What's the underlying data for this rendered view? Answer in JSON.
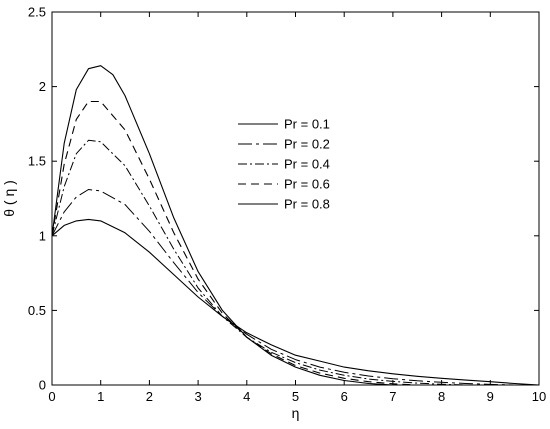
{
  "chart_data": {
    "type": "line",
    "title": "",
    "xlabel": "η",
    "ylabel": "θ ( η )",
    "xlim": [
      0,
      10
    ],
    "ylim": [
      0,
      2.5
    ],
    "xticks": [
      0,
      1,
      2,
      3,
      4,
      5,
      6,
      7,
      8,
      9,
      10
    ],
    "yticks": [
      0,
      0.5,
      1,
      1.5,
      2,
      2.5
    ],
    "xtick_labels": [
      "0",
      "1",
      "2",
      "3",
      "4",
      "5",
      "6",
      "7",
      "8",
      "9",
      "10"
    ],
    "ytick_labels": [
      "0",
      "0.5",
      "1",
      "1.5",
      "2",
      "2.5"
    ],
    "grid": false,
    "legend_position": "center",
    "series": [
      {
        "name": "Pr = 0.1",
        "color": "#000000",
        "dash": "solid",
        "x": [
          0,
          0.25,
          0.5,
          0.75,
          1,
          1.5,
          2,
          2.5,
          3,
          3.5,
          4,
          4.5,
          5,
          5.5,
          6,
          6.5,
          7,
          7.5,
          8,
          8.5,
          9,
          9.5,
          10
        ],
        "y": [
          1.0,
          1.07,
          1.1,
          1.11,
          1.1,
          1.02,
          0.89,
          0.74,
          0.59,
          0.46,
          0.35,
          0.27,
          0.2,
          0.16,
          0.12,
          0.095,
          0.075,
          0.058,
          0.045,
          0.033,
          0.022,
          0.01,
          0.0
        ]
      },
      {
        "name": "Pr = 0.2",
        "color": "#000000",
        "dash": "longdash",
        "x": [
          0,
          0.25,
          0.5,
          0.75,
          1,
          1.5,
          2,
          2.5,
          3,
          3.5,
          4,
          4.5,
          5,
          5.5,
          6,
          6.5,
          7,
          7.5,
          8,
          8.5,
          9,
          9.5
        ],
        "y": [
          1.0,
          1.16,
          1.26,
          1.31,
          1.3,
          1.21,
          1.03,
          0.82,
          0.62,
          0.46,
          0.34,
          0.24,
          0.17,
          0.12,
          0.085,
          0.06,
          0.042,
          0.028,
          0.018,
          0.01,
          0.004,
          0.0
        ]
      },
      {
        "name": "Pr = 0.4",
        "color": "#000000",
        "dash": "dashdot",
        "x": [
          0,
          0.25,
          0.5,
          0.75,
          1,
          1.5,
          2,
          2.5,
          3,
          3.5,
          4,
          4.5,
          5,
          5.5,
          6,
          6.5,
          7,
          7.5,
          8,
          8.5
        ],
        "y": [
          1.0,
          1.33,
          1.55,
          1.64,
          1.63,
          1.47,
          1.2,
          0.91,
          0.65,
          0.46,
          0.32,
          0.22,
          0.15,
          0.1,
          0.065,
          0.04,
          0.024,
          0.013,
          0.005,
          0.0
        ]
      },
      {
        "name": "Pr = 0.6",
        "color": "#000000",
        "dash": "dashed",
        "x": [
          0,
          0.25,
          0.5,
          0.75,
          1,
          1.5,
          2,
          2.5,
          3,
          3.5,
          4,
          4.5,
          5,
          5.5,
          6,
          6.5,
          7,
          7.5
        ],
        "y": [
          1.0,
          1.48,
          1.78,
          1.9,
          1.9,
          1.71,
          1.38,
          1.02,
          0.71,
          0.48,
          0.32,
          0.21,
          0.13,
          0.08,
          0.045,
          0.022,
          0.008,
          0.0
        ]
      },
      {
        "name": "Pr = 0.8",
        "color": "#000000",
        "dash": "solid",
        "x": [
          0,
          0.25,
          0.5,
          0.75,
          1,
          1.25,
          1.5,
          2,
          2.5,
          3,
          3.5,
          4,
          4.5,
          5,
          5.5,
          6,
          6.5,
          7
        ],
        "y": [
          1.0,
          1.62,
          1.98,
          2.12,
          2.14,
          2.08,
          1.94,
          1.55,
          1.12,
          0.76,
          0.5,
          0.32,
          0.2,
          0.12,
          0.065,
          0.03,
          0.01,
          0.0
        ]
      }
    ]
  }
}
